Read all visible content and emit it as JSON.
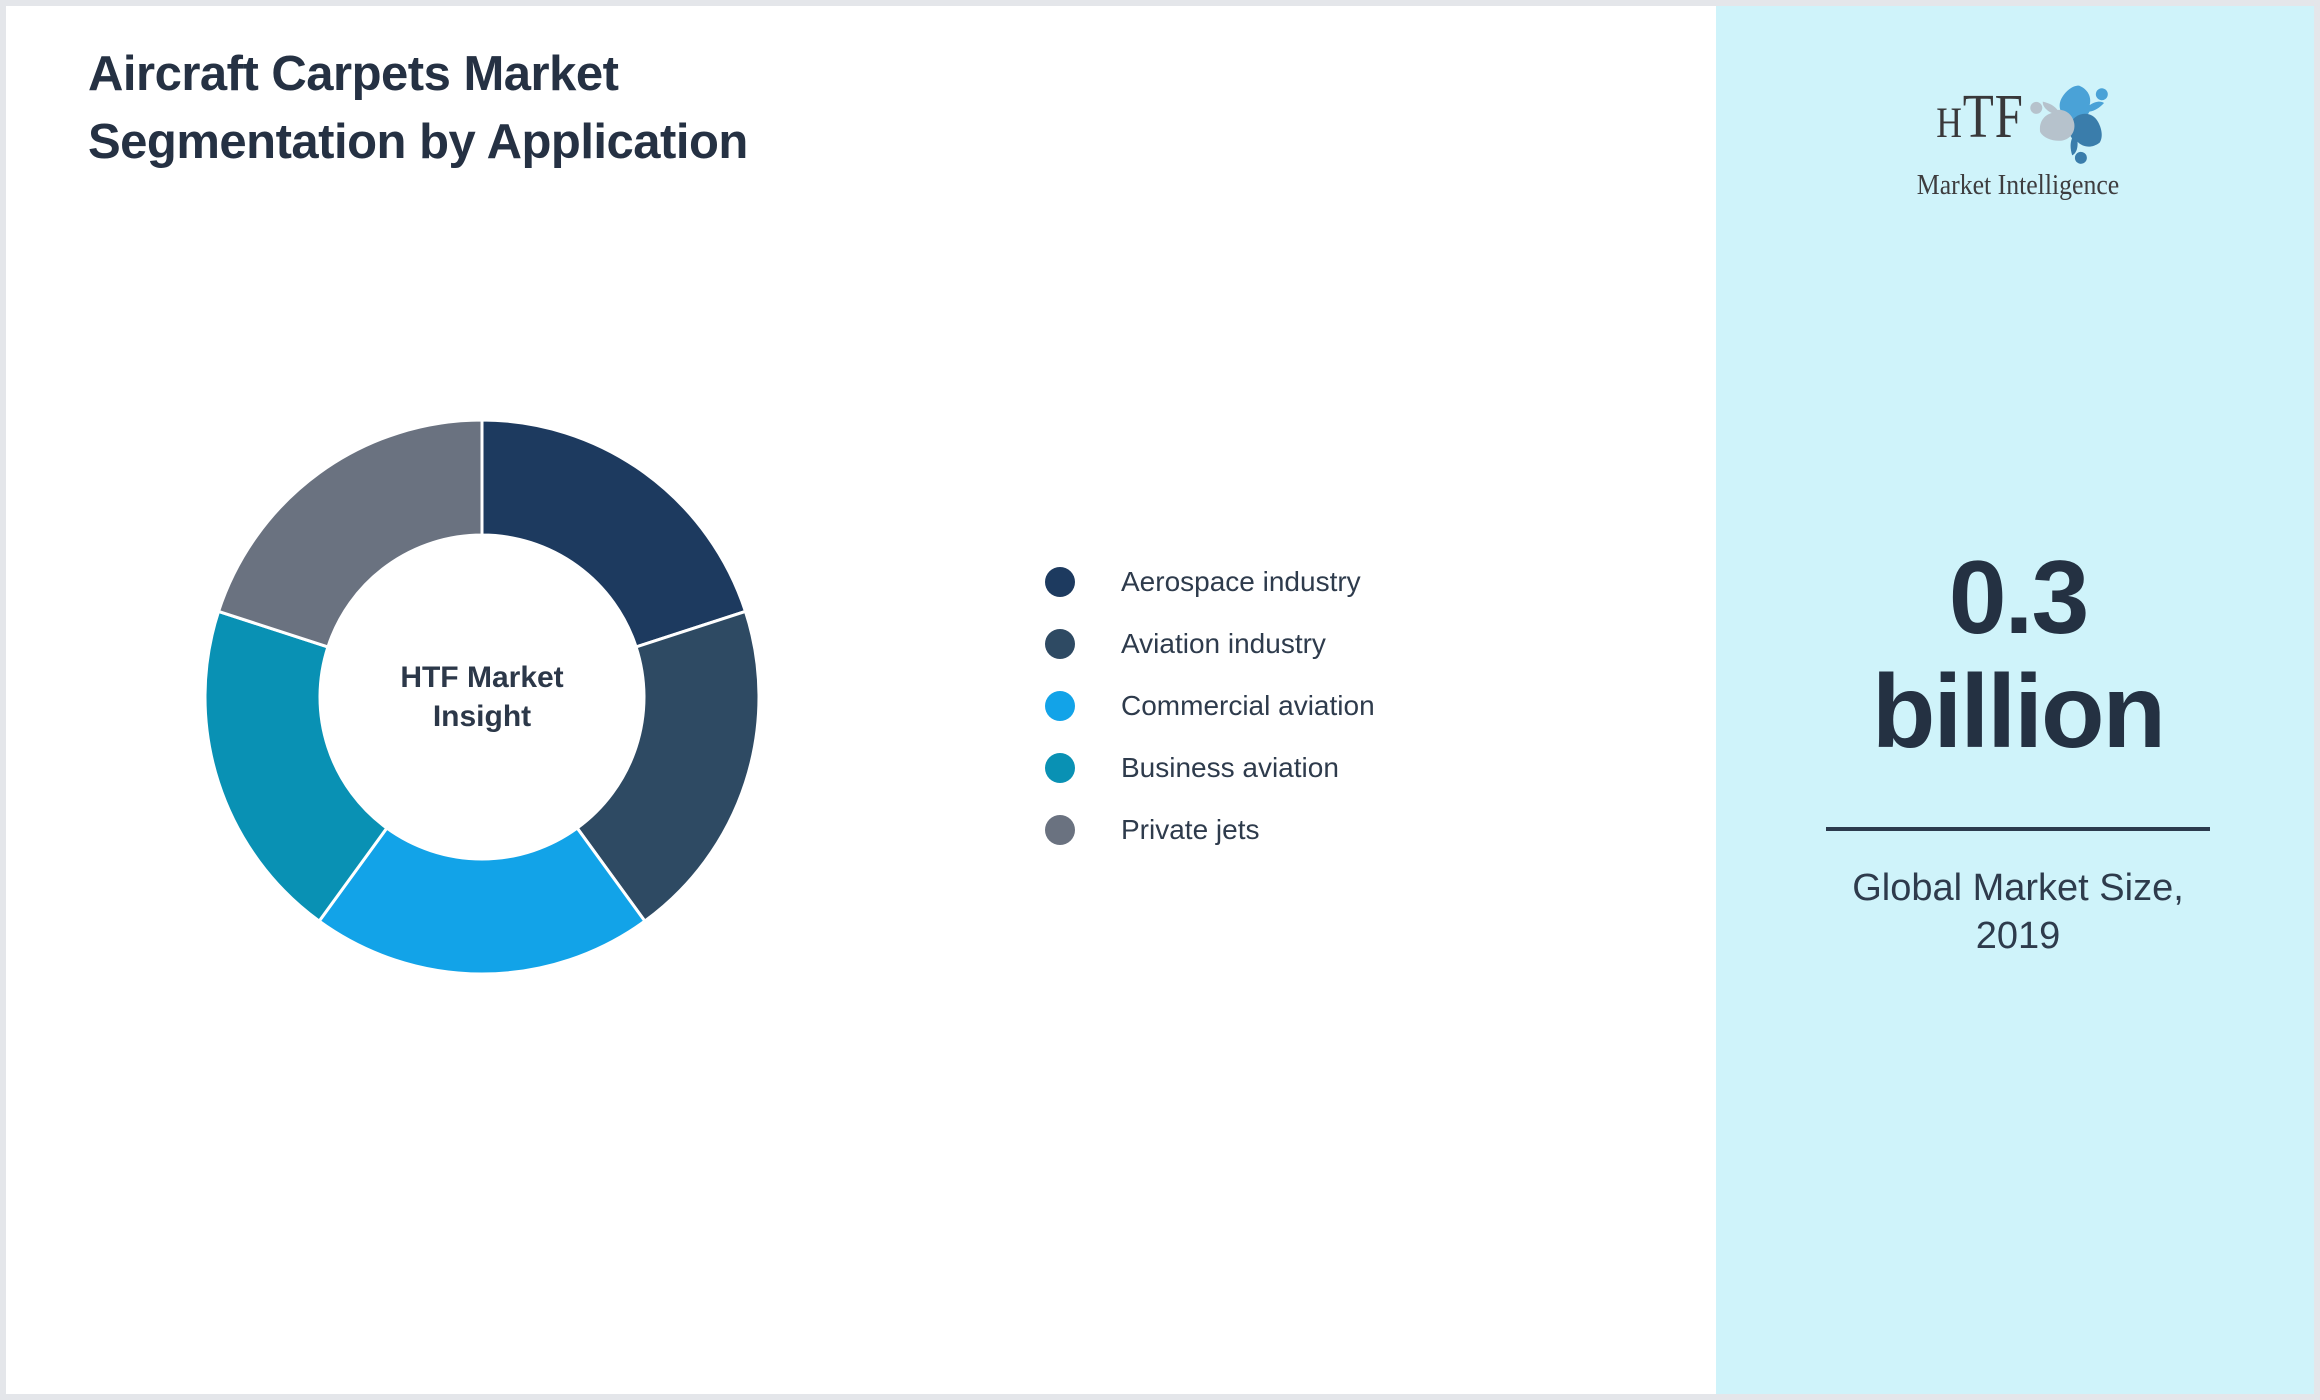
{
  "title": {
    "line1": "Aircraft Carpets Market",
    "line2": "Segmentation by Application"
  },
  "chart_data": {
    "type": "pie",
    "subtype": "donut",
    "title": "Aircraft Carpets Market Segmentation by Application",
    "labels": [
      "Aerospace industry",
      "Aviation industry",
      "Commercial aviation",
      "Business aviation",
      "Private jets"
    ],
    "values": [
      20,
      20,
      20,
      20,
      20
    ],
    "unit": "percent",
    "colors": [
      "#1d3a5f",
      "#2e4a63",
      "#12a3e8",
      "#0991b4",
      "#6a7280"
    ],
    "start_angle_deg": 0,
    "direction": "clockwise",
    "inner_radius_ratio": 0.585,
    "slice_border_color": "#ffffff",
    "legend_position": "right-of-chart",
    "center_label_lines": [
      "HTF Market",
      "Insight"
    ]
  },
  "sidebar": {
    "background": "#cff3fa",
    "logo": {
      "text": "HTF",
      "subtext": "Market Intelligence"
    },
    "metric": {
      "lines": [
        "0.3",
        "billion"
      ],
      "color": "#243142"
    },
    "caption": {
      "lines": [
        "Global Market Size,",
        "2019"
      ]
    }
  },
  "colors": {
    "title_text": "#253143",
    "legend_text": "#2e3b4c",
    "frame_border": "#e4e6ea",
    "canvas_background": "#ffffff"
  }
}
